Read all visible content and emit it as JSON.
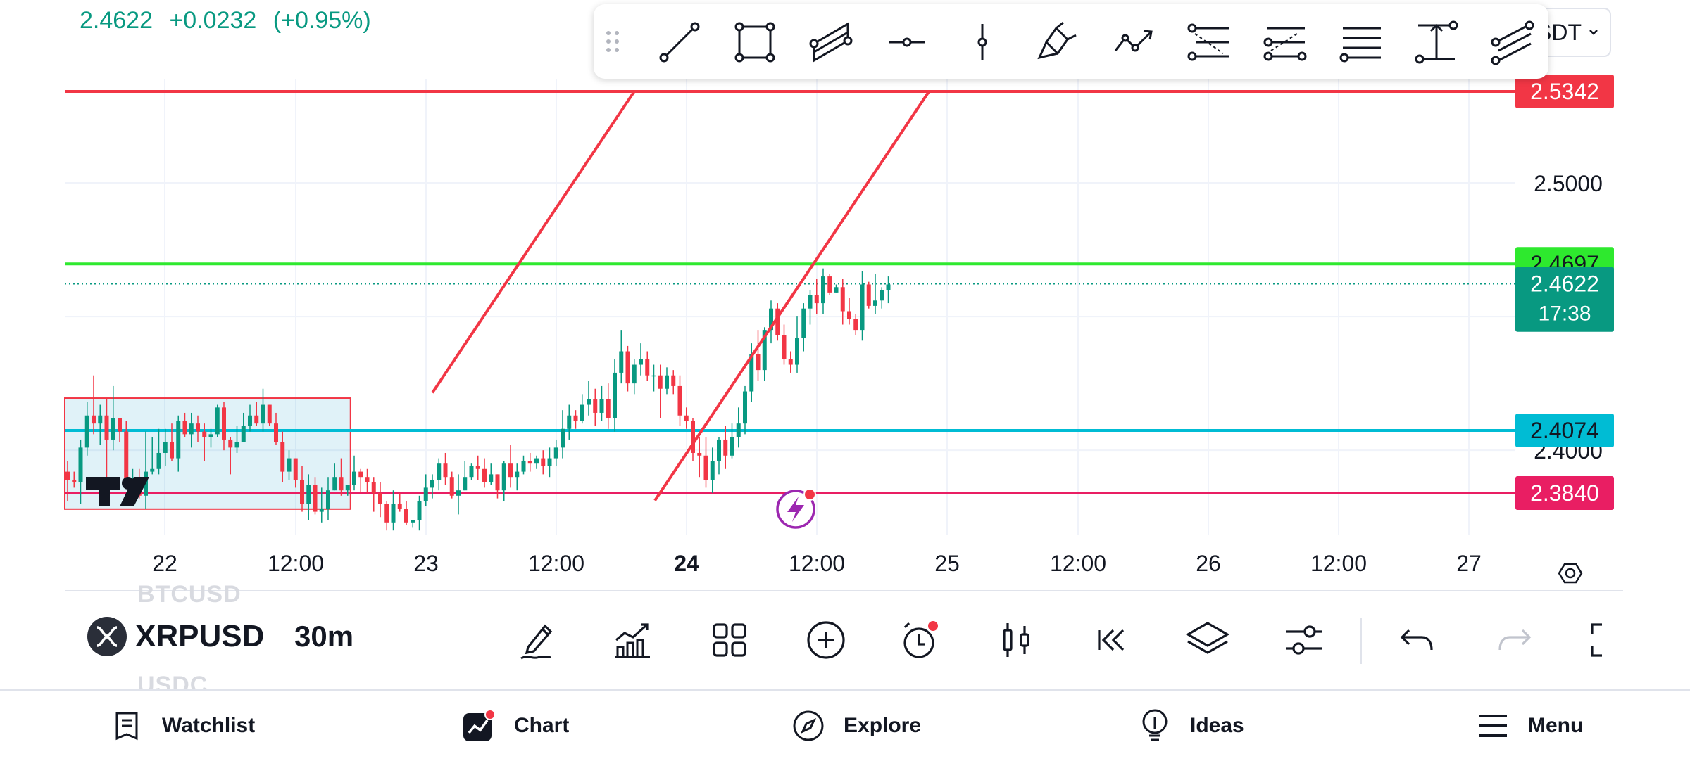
{
  "quote": {
    "price": "2.4622",
    "change": "+0.0232",
    "change_pct": "(+0.95%)"
  },
  "symbol_selector": {
    "label": "SDT"
  },
  "price_axis": {
    "labels": [
      "2.5000",
      "2.4000"
    ],
    "badges": [
      {
        "value": "2.5342",
        "color": "#f23645",
        "text_color": "#ffffff"
      },
      {
        "value": "2.4697",
        "color": "#2ee92e",
        "text_color": "#131722"
      },
      {
        "value": "2.4074",
        "color": "#00bcd4",
        "text_color": "#131722"
      },
      {
        "value": "2.3840",
        "color": "#e91e63",
        "text_color": "#ffffff"
      }
    ],
    "current": {
      "price": "2.4622",
      "countdown": "17:38",
      "color": "#089981"
    }
  },
  "time_axis": {
    "labels": [
      "22",
      "12:00",
      "23",
      "12:00",
      "24",
      "12:00",
      "25",
      "12:00",
      "26",
      "12:00",
      "27"
    ]
  },
  "chart_data": {
    "type": "candlestick",
    "symbol": "XRPUSD",
    "interval": "30m",
    "price_range": [
      2.35,
      2.56
    ],
    "horizontal_lines": [
      2.5342,
      2.4697,
      2.4074,
      2.384
    ],
    "current_price": 2.4622,
    "candles": [
      [
        2.392,
        2.389,
        2.396,
        2.381
      ],
      [
        2.389,
        2.388,
        2.392,
        2.386
      ],
      [
        2.388,
        2.401,
        2.404,
        2.38
      ],
      [
        2.401,
        2.413,
        2.418,
        2.398
      ],
      [
        2.413,
        2.41,
        2.428,
        2.406
      ],
      [
        2.41,
        2.413,
        2.417,
        2.402
      ],
      [
        2.413,
        2.404,
        2.419,
        2.39
      ],
      [
        2.404,
        2.412,
        2.424,
        2.4
      ],
      [
        2.412,
        2.407,
        2.412,
        2.403
      ],
      [
        2.407,
        2.387,
        2.411,
        2.386
      ],
      [
        2.387,
        2.389,
        2.393,
        2.384
      ],
      [
        2.389,
        2.383,
        2.393,
        2.382
      ],
      [
        2.383,
        2.392,
        2.407,
        2.378
      ],
      [
        2.392,
        2.393,
        2.405,
        2.391
      ],
      [
        2.393,
        2.399,
        2.408,
        2.391
      ],
      [
        2.399,
        2.403,
        2.408,
        2.394
      ],
      [
        2.403,
        2.397,
        2.41,
        2.396
      ],
      [
        2.397,
        2.411,
        2.413,
        2.392
      ],
      [
        2.411,
        2.406,
        2.414,
        2.405
      ],
      [
        2.406,
        2.41,
        2.414,
        2.401
      ],
      [
        2.41,
        2.407,
        2.413,
        2.403
      ],
      [
        2.407,
        2.405,
        2.41,
        2.396
      ],
      [
        2.405,
        2.406,
        2.408,
        2.401
      ],
      [
        2.406,
        2.416,
        2.417,
        2.405
      ],
      [
        2.416,
        2.404,
        2.418,
        2.4
      ],
      [
        2.404,
        2.401,
        2.405,
        2.391
      ],
      [
        2.401,
        2.403,
        2.409,
        2.399
      ],
      [
        2.403,
        2.409,
        2.414,
        2.405
      ],
      [
        2.409,
        2.413,
        2.417,
        2.407
      ],
      [
        2.413,
        2.41,
        2.418,
        2.409
      ],
      [
        2.41,
        2.417,
        2.423,
        2.407
      ],
      [
        2.417,
        2.41,
        2.417,
        2.409
      ],
      [
        2.41,
        2.403,
        2.414,
        2.402
      ],
      [
        2.403,
        2.392,
        2.407,
        2.388
      ],
      [
        2.392,
        2.397,
        2.4,
        2.389
      ],
      [
        2.397,
        2.389,
        2.397,
        2.386
      ],
      [
        2.389,
        2.38,
        2.394,
        2.377
      ],
      [
        2.38,
        2.387,
        2.391,
        2.374
      ],
      [
        2.387,
        2.377,
        2.39,
        2.376
      ],
      [
        2.377,
        2.378,
        2.386,
        2.373
      ],
      [
        2.378,
        2.385,
        2.39,
        2.374
      ],
      [
        2.385,
        2.39,
        2.395,
        2.385
      ],
      [
        2.39,
        2.385,
        2.397,
        2.383
      ],
      [
        2.385,
        2.387,
        2.387,
        2.383
      ],
      [
        2.387,
        2.392,
        2.398,
        2.385
      ],
      [
        2.392,
        2.39,
        2.393,
        2.384
      ],
      [
        2.39,
        2.388,
        2.393,
        2.384
      ],
      [
        2.388,
        2.384,
        2.39,
        2.377
      ],
      [
        2.384,
        2.38,
        2.388,
        2.375
      ],
      [
        2.38,
        2.373,
        2.381,
        2.37
      ],
      [
        2.373,
        2.38,
        2.385,
        2.37
      ],
      [
        2.38,
        2.378,
        2.384,
        2.377
      ],
      [
        2.378,
        2.373,
        2.381,
        2.372
      ],
      [
        2.373,
        2.374,
        2.374,
        2.371
      ],
      [
        2.374,
        2.381,
        2.383,
        2.37
      ],
      [
        2.381,
        2.386,
        2.391,
        2.379
      ],
      [
        2.386,
        2.389,
        2.391,
        2.382
      ],
      [
        2.389,
        2.395,
        2.397,
        2.385
      ],
      [
        2.395,
        2.39,
        2.399,
        2.387
      ],
      [
        2.39,
        2.383,
        2.392,
        2.382
      ],
      [
        2.383,
        2.385,
        2.391,
        2.376
      ],
      [
        2.385,
        2.39,
        2.396,
        2.385
      ],
      [
        2.39,
        2.394,
        2.395,
        2.389
      ],
      [
        2.394,
        2.393,
        2.398,
        2.389
      ],
      [
        2.393,
        2.388,
        2.397,
        2.386
      ],
      [
        2.388,
        2.391,
        2.395,
        2.387
      ],
      [
        2.391,
        2.385,
        2.391,
        2.382
      ],
      [
        2.385,
        2.395,
        2.396,
        2.381
      ],
      [
        2.395,
        2.39,
        2.402,
        2.386
      ],
      [
        2.39,
        2.392,
        2.395,
        2.385
      ],
      [
        2.392,
        2.396,
        2.398,
        2.391
      ],
      [
        2.396,
        2.395,
        2.399,
        2.392
      ],
      [
        2.395,
        2.397,
        2.398,
        2.393
      ],
      [
        2.397,
        2.394,
        2.4,
        2.391
      ],
      [
        2.394,
        2.397,
        2.401,
        2.39
      ],
      [
        2.397,
        2.401,
        2.404,
        2.394
      ],
      [
        2.401,
        2.408,
        2.415,
        2.397
      ],
      [
        2.408,
        2.413,
        2.417,
        2.404
      ],
      [
        2.413,
        2.411,
        2.415,
        2.408
      ],
      [
        2.411,
        2.417,
        2.421,
        2.41
      ],
      [
        2.417,
        2.419,
        2.426,
        2.413
      ],
      [
        2.419,
        2.414,
        2.423,
        2.409
      ],
      [
        2.414,
        2.419,
        2.424,
        2.411
      ],
      [
        2.419,
        2.412,
        2.425,
        2.408
      ],
      [
        2.412,
        2.429,
        2.434,
        2.407
      ],
      [
        2.429,
        2.437,
        2.445,
        2.425
      ],
      [
        2.437,
        2.425,
        2.439,
        2.422
      ],
      [
        2.425,
        2.432,
        2.434,
        2.421
      ],
      [
        2.432,
        2.434,
        2.44,
        2.428
      ],
      [
        2.434,
        2.428,
        2.437,
        2.426
      ],
      [
        2.428,
        2.428,
        2.432,
        2.422
      ],
      [
        2.428,
        2.423,
        2.432,
        2.412
      ],
      [
        2.423,
        2.428,
        2.431,
        2.421
      ],
      [
        2.428,
        2.424,
        2.43,
        2.421
      ],
      [
        2.424,
        2.413,
        2.428,
        2.409
      ],
      [
        2.413,
        2.411,
        2.416,
        2.408
      ],
      [
        2.411,
        2.399,
        2.412,
        2.396
      ],
      [
        2.399,
        2.398,
        2.405,
        2.39
      ],
      [
        2.398,
        2.389,
        2.405,
        2.386
      ],
      [
        2.389,
        2.396,
        2.401,
        2.384
      ],
      [
        2.396,
        2.404,
        2.405,
        2.391
      ],
      [
        2.404,
        2.398,
        2.409,
        2.393
      ],
      [
        2.398,
        2.405,
        2.41,
        2.397
      ],
      [
        2.405,
        2.41,
        2.416,
        2.401
      ],
      [
        2.41,
        2.422,
        2.424,
        2.406
      ],
      [
        2.422,
        2.436,
        2.44,
        2.418
      ],
      [
        2.436,
        2.43,
        2.445,
        2.426
      ],
      [
        2.43,
        2.445,
        2.446,
        2.426
      ],
      [
        2.445,
        2.453,
        2.456,
        2.44
      ],
      [
        2.453,
        2.443,
        2.455,
        2.441
      ],
      [
        2.443,
        2.434,
        2.447,
        2.432
      ],
      [
        2.434,
        2.432,
        2.437,
        2.429
      ],
      [
        2.432,
        2.442,
        2.45,
        2.429
      ],
      [
        2.442,
        2.453,
        2.455,
        2.437
      ],
      [
        2.453,
        2.458,
        2.46,
        2.447
      ],
      [
        2.458,
        2.455,
        2.464,
        2.451
      ],
      [
        2.455,
        2.465,
        2.468,
        2.451
      ],
      [
        2.465,
        2.459,
        2.466,
        2.458
      ],
      [
        2.459,
        2.461,
        2.462,
        2.459
      ],
      [
        2.461,
        2.452,
        2.464,
        2.447
      ],
      [
        2.452,
        2.449,
        2.457,
        2.447
      ],
      [
        2.449,
        2.445,
        2.451,
        2.443
      ],
      [
        2.445,
        2.462,
        2.467,
        2.441
      ],
      [
        2.462,
        2.454,
        2.463,
        2.453
      ],
      [
        2.454,
        2.456,
        2.466,
        2.451
      ],
      [
        2.456,
        2.46,
        2.461,
        2.453
      ],
      [
        2.46,
        2.462,
        2.465,
        2.455
      ]
    ]
  },
  "drawings": {
    "rectangle": {
      "from": {
        "candle": 0,
        "price": 2.4195
      },
      "to": {
        "candle": 43,
        "price": 2.378
      },
      "stroke": "#f23645",
      "fill": "rgba(0, 150, 200, 0.12)"
    },
    "parallel_channel": {
      "start": {
        "candle": 56,
        "price": 2.4215
      },
      "end": {
        "candle": 87,
        "price": 2.5342
      },
      "offset": -0.0395,
      "stroke": "#f23645"
    },
    "horizontal_lines": [
      {
        "price": 2.5342,
        "color": "#f23645"
      },
      {
        "price": 2.4697,
        "color": "#2ee92e"
      },
      {
        "price": 2.4074,
        "color": "#00bcd4"
      },
      {
        "price": 2.384,
        "color": "#e91e63"
      }
    ]
  },
  "colors": {
    "up": "#089981",
    "down": "#f23645",
    "grid": "#f0f3fa",
    "text": "#131722"
  },
  "drawing_toolbar": {
    "tools": [
      "trend-line-icon",
      "rectangle-icon",
      "parallel-channel-icon",
      "horizontal-ray-icon",
      "vertical-line-icon",
      "brush-icon",
      "path-icon",
      "fib-retracement-icon",
      "fib-extension-icon",
      "horizontal-lines-icon",
      "price-range-icon",
      "pitchfork-icon"
    ]
  },
  "bottom_toolbar": {
    "symbol": "XRPUSD",
    "interval": "30m",
    "ghost_above": "BTCUSD",
    "ghost_below": "USDC",
    "tools": [
      "draw-icon",
      "indicators-icon",
      "layouts-icon",
      "add-icon",
      "alert-icon",
      "chart-type-icon",
      "replay-icon",
      "layers-icon",
      "settings-icon",
      "undo-icon",
      "redo-icon",
      "fullscreen-icon"
    ]
  },
  "nav": {
    "items": [
      {
        "label": "Watchlist",
        "icon": "watchlist-icon"
      },
      {
        "label": "Chart",
        "icon": "chart-icon"
      },
      {
        "label": "Explore",
        "icon": "explore-icon"
      },
      {
        "label": "Ideas",
        "icon": "ideas-icon"
      },
      {
        "label": "Menu",
        "icon": "menu-icon"
      }
    ]
  }
}
